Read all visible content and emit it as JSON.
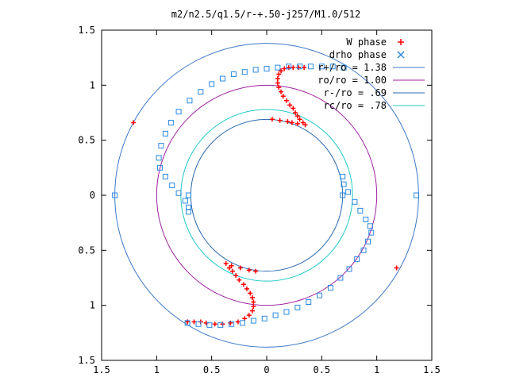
{
  "chart_data": {
    "type": "scatter",
    "title": "m2/n2.5/q1.5/r-+.50-j257/M1.0/512",
    "xlim": [
      -1.5,
      1.5
    ],
    "ylim": [
      -1.5,
      1.5
    ],
    "x_ticks": [
      {
        "value": -1.5,
        "label": "1.5"
      },
      {
        "value": -1.0,
        "label": "1"
      },
      {
        "value": -0.5,
        "label": "0.5"
      },
      {
        "value": 0,
        "label": "0"
      },
      {
        "value": 0.5,
        "label": "0.5"
      },
      {
        "value": 1.0,
        "label": "1"
      },
      {
        "value": 1.5,
        "label": "1.5"
      }
    ],
    "y_ticks": [
      {
        "value": 1.5,
        "label": "1.5"
      },
      {
        "value": 1.0,
        "label": "1"
      },
      {
        "value": 0.5,
        "label": "0.5"
      },
      {
        "value": 0,
        "label": "0"
      },
      {
        "value": -0.5,
        "label": "0.5"
      },
      {
        "value": -1.0,
        "label": "1"
      },
      {
        "value": -1.5,
        "label": "1.5"
      }
    ],
    "grid": false,
    "legend_position": "top-right",
    "circles": [
      {
        "name": "r+/ro = 1.38",
        "radius": 1.38,
        "color": "#3c78c8"
      },
      {
        "name": "ro/ro = 1.00",
        "radius": 1.0,
        "color": "#a020a0"
      },
      {
        "name": "r-/ro = .69",
        "radius": 0.69,
        "color": "#2a6ab0"
      },
      {
        "name": "rc/ro = .78",
        "radius": 0.78,
        "color": "#20c8c8"
      }
    ],
    "series": [
      {
        "name": "W phase",
        "marker": "plus",
        "color": "#ff0000"
      },
      {
        "name": "drho phase",
        "marker": "cross",
        "color": "#2a8ae0"
      }
    ],
    "w_phase": [
      [
        0.35,
        0.64
      ],
      [
        0.33,
        0.66
      ],
      [
        0.3,
        0.69
      ],
      [
        0.28,
        0.72
      ],
      [
        0.26,
        0.75
      ],
      [
        0.24,
        0.79
      ],
      [
        0.21,
        0.82
      ],
      [
        0.18,
        0.86
      ],
      [
        0.15,
        0.9
      ],
      [
        0.13,
        0.94
      ],
      [
        0.11,
        0.98
      ],
      [
        0.1,
        1.02
      ],
      [
        0.1,
        1.06
      ],
      [
        0.11,
        1.1
      ],
      [
        0.13,
        1.13
      ],
      [
        0.16,
        1.15
      ],
      [
        0.2,
        1.16
      ],
      [
        0.24,
        1.16
      ],
      [
        0.29,
        1.16
      ],
      [
        0.34,
        1.16
      ],
      [
        0.05,
        0.69
      ],
      [
        0.12,
        0.68
      ],
      [
        0.19,
        0.67
      ],
      [
        0.23,
        0.66
      ],
      [
        0.28,
        0.65
      ],
      [
        -1.21,
        0.66
      ],
      [
        1.18,
        -0.66
      ],
      [
        -0.37,
        -0.62
      ],
      [
        -0.34,
        -0.66
      ],
      [
        -0.31,
        -0.69
      ],
      [
        -0.28,
        -0.73
      ],
      [
        -0.25,
        -0.77
      ],
      [
        -0.21,
        -0.81
      ],
      [
        -0.18,
        -0.85
      ],
      [
        -0.15,
        -0.89
      ],
      [
        -0.13,
        -0.93
      ],
      [
        -0.12,
        -0.97
      ],
      [
        -0.12,
        -1.01
      ],
      [
        -0.13,
        -1.05
      ],
      [
        -0.16,
        -1.09
      ],
      [
        -0.2,
        -1.12
      ],
      [
        -0.26,
        -1.15
      ],
      [
        -0.33,
        -1.16
      ],
      [
        -0.4,
        -1.17
      ],
      [
        -0.47,
        -1.17
      ],
      [
        -0.32,
        -0.64
      ],
      [
        -0.24,
        -0.66
      ],
      [
        -0.16,
        -0.68
      ],
      [
        -0.1,
        -0.69
      ],
      [
        -0.55,
        -1.16
      ],
      [
        -0.6,
        -1.15
      ],
      [
        -0.66,
        -1.15
      ],
      [
        -0.72,
        -1.15
      ]
    ],
    "drho_phase": [
      [
        -0.72,
        -1.16
      ],
      [
        -0.62,
        -1.17
      ],
      [
        -0.52,
        -1.18
      ],
      [
        -0.42,
        -1.18
      ],
      [
        -0.32,
        -1.17
      ],
      [
        -0.22,
        -1.16
      ],
      [
        -0.12,
        -1.14
      ],
      [
        -0.02,
        -1.12
      ],
      [
        0.08,
        -1.09
      ],
      [
        0.18,
        -1.06
      ],
      [
        0.28,
        -1.02
      ],
      [
        0.38,
        -0.97
      ],
      [
        0.48,
        -0.91
      ],
      [
        0.58,
        -0.84
      ],
      [
        0.67,
        -0.75
      ],
      [
        0.75,
        -0.67
      ],
      [
        0.82,
        -0.58
      ],
      [
        0.88,
        -0.5
      ],
      [
        0.92,
        -0.42
      ],
      [
        0.95,
        -0.34
      ],
      [
        0.94,
        -0.28
      ],
      [
        0.9,
        -0.22
      ],
      [
        0.85,
        -0.14
      ],
      [
        0.8,
        -0.06
      ],
      [
        0.74,
        0.03
      ],
      [
        0.7,
        0.1
      ],
      [
        0.69,
        0.17
      ],
      [
        0.69,
        0.0
      ],
      [
        1.36,
        0.0
      ],
      [
        0.7,
        1.16
      ],
      [
        0.6,
        1.17
      ],
      [
        0.5,
        1.17
      ],
      [
        0.4,
        1.17
      ],
      [
        0.3,
        1.17
      ],
      [
        0.2,
        1.17
      ],
      [
        0.1,
        1.16
      ],
      [
        0.0,
        1.15
      ],
      [
        -0.1,
        1.14
      ],
      [
        -0.2,
        1.12
      ],
      [
        -0.3,
        1.1
      ],
      [
        -0.4,
        1.06
      ],
      [
        -0.5,
        1.01
      ],
      [
        -0.6,
        0.94
      ],
      [
        -0.7,
        0.86
      ],
      [
        -0.8,
        0.76
      ],
      [
        -0.87,
        0.66
      ],
      [
        -0.92,
        0.56
      ],
      [
        -0.96,
        0.45
      ],
      [
        -0.98,
        0.34
      ],
      [
        -0.97,
        0.25
      ],
      [
        -0.92,
        0.17
      ],
      [
        -0.86,
        0.09
      ],
      [
        -0.8,
        0.02
      ],
      [
        -0.74,
        -0.05
      ],
      [
        -0.71,
        -0.11
      ],
      [
        -0.71,
        -0.15
      ],
      [
        -0.71,
        0.0
      ],
      [
        -1.38,
        0.0
      ]
    ]
  }
}
